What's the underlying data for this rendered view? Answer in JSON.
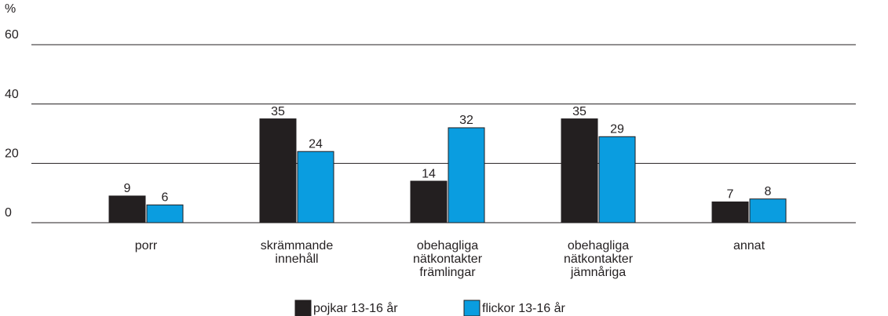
{
  "chart_data": {
    "type": "bar",
    "y_label": "%",
    "categories": [
      [
        "porr"
      ],
      [
        "skrämmande",
        "innehåll"
      ],
      [
        "obehagliga",
        "nätkontakter",
        "främlingar"
      ],
      [
        "obehagliga",
        "nätkontakter",
        "jämnåriga"
      ],
      [
        "annat"
      ]
    ],
    "series": [
      {
        "name": "pojkar 13-16 år",
        "color": "#231f20",
        "values": [
          9,
          35,
          14,
          35,
          7
        ]
      },
      {
        "name": "flickor 13-16 år",
        "color": "#0a9de0",
        "values": [
          6,
          24,
          32,
          29,
          8
        ]
      }
    ],
    "ylim": [
      0,
      60
    ],
    "yticks": [
      0,
      20,
      40,
      60
    ],
    "grid": true
  }
}
